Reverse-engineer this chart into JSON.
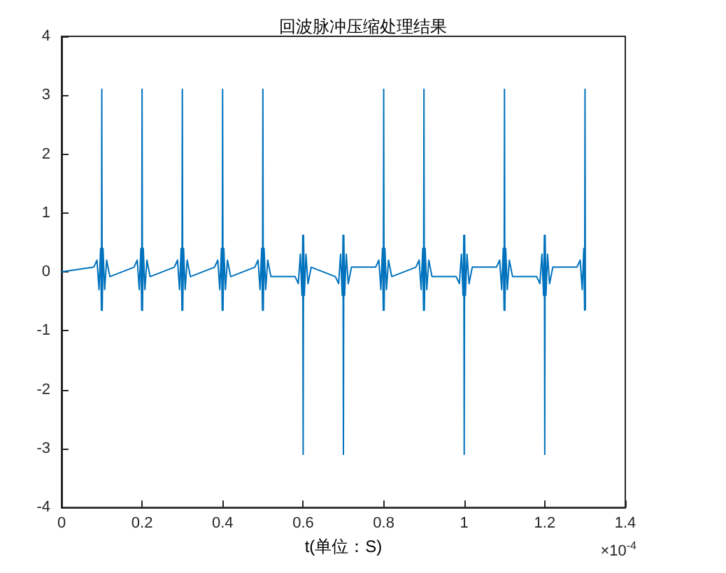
{
  "chart_data": {
    "type": "line",
    "title": "回波脉冲压缩处理结果",
    "xlabel": "t(单位：S)",
    "annotations": [
      "×10$^{-4}$"
    ],
    "xlim": [
      0,
      1.4
    ],
    "xticks": [
      0,
      0.2,
      0.4,
      0.6,
      0.8,
      1,
      1.2,
      1.4
    ],
    "ylim": [
      -4,
      4
    ],
    "yticks": [
      -4,
      -3,
      -2,
      -1,
      0,
      1,
      2,
      3,
      4
    ],
    "grid": false,
    "marker": "none",
    "line_style": "solid",
    "series": [
      {
        "color": "#0072bd",
        "x": [
          0,
          0.08,
          0.088,
          0.093,
          0.097,
          0.099,
          0.1,
          0.101,
          0.103,
          0.107,
          0.112,
          0.12,
          0.18,
          0.188,
          0.193,
          0.197,
          0.199,
          0.2,
          0.201,
          0.203,
          0.207,
          0.212,
          0.22,
          0.28,
          0.288,
          0.293,
          0.297,
          0.299,
          0.3,
          0.301,
          0.303,
          0.307,
          0.312,
          0.32,
          0.38,
          0.388,
          0.393,
          0.397,
          0.399,
          0.4,
          0.401,
          0.403,
          0.407,
          0.412,
          0.42,
          0.48,
          0.488,
          0.493,
          0.497,
          0.499,
          0.5,
          0.501,
          0.503,
          0.507,
          0.512,
          0.52,
          0.58,
          0.588,
          0.593,
          0.597,
          0.599,
          0.6,
          0.601,
          0.603,
          0.607,
          0.612,
          0.62,
          0.68,
          0.688,
          0.693,
          0.697,
          0.699,
          0.7,
          0.701,
          0.703,
          0.707,
          0.712,
          0.72,
          0.78,
          0.788,
          0.793,
          0.797,
          0.799,
          0.8,
          0.801,
          0.803,
          0.807,
          0.812,
          0.82,
          0.88,
          0.888,
          0.893,
          0.897,
          0.899,
          0.9,
          0.901,
          0.903,
          0.907,
          0.912,
          0.92,
          0.98,
          0.988,
          0.993,
          0.997,
          0.999,
          1,
          1.001,
          1.003,
          1.007,
          1.012,
          1.02,
          1.08,
          1.088,
          1.093,
          1.097,
          1.099,
          1.1,
          1.101,
          1.103,
          1.107,
          1.112,
          1.12,
          1.18,
          1.188,
          1.193,
          1.197,
          1.199,
          1.2,
          1.201,
          1.203,
          1.207,
          1.212,
          1.22,
          1.28,
          1.288,
          1.293,
          1.297,
          1.299,
          1.3,
          1.301
        ],
        "values": [
          0,
          0.08,
          0.2,
          -0.3,
          0.4,
          -0.65,
          3.1,
          -0.65,
          0.4,
          -0.3,
          0.2,
          -0.08,
          0.08,
          0.2,
          -0.3,
          0.4,
          -0.65,
          3.1,
          -0.65,
          0.4,
          -0.3,
          0.2,
          -0.08,
          0.08,
          0.2,
          -0.3,
          0.4,
          -0.65,
          3.1,
          -0.65,
          0.4,
          -0.3,
          0.2,
          -0.08,
          0.08,
          0.2,
          -0.3,
          0.4,
          -0.65,
          3.1,
          -0.65,
          0.4,
          -0.3,
          0.2,
          -0.08,
          0.08,
          0.2,
          -0.3,
          0.4,
          -0.65,
          3.1,
          -0.65,
          0.4,
          -0.3,
          0.2,
          -0.08,
          -0.08,
          -0.2,
          0.3,
          -0.4,
          0.62,
          -3.1,
          0.62,
          -0.4,
          0.3,
          -0.2,
          0.08,
          -0.08,
          -0.2,
          0.3,
          -0.4,
          0.62,
          -3.1,
          0.62,
          -0.4,
          0.3,
          -0.2,
          0.08,
          0.08,
          0.2,
          -0.3,
          0.4,
          -0.65,
          3.1,
          -0.65,
          0.4,
          -0.3,
          0.2,
          -0.08,
          0.08,
          0.2,
          -0.3,
          0.4,
          -0.65,
          3.1,
          -0.65,
          0.4,
          -0.3,
          0.2,
          -0.08,
          -0.08,
          -0.2,
          0.3,
          -0.4,
          0.62,
          -3.1,
          0.62,
          -0.4,
          0.3,
          -0.2,
          0.08,
          0.08,
          0.2,
          -0.3,
          0.4,
          -0.65,
          3.1,
          -0.65,
          0.4,
          -0.3,
          0.2,
          -0.08,
          -0.08,
          -0.2,
          0.3,
          -0.4,
          0.62,
          -3.1,
          0.62,
          -0.4,
          0.3,
          -0.2,
          0.08,
          0.08,
          0.2,
          -0.3,
          0.4,
          -0.65,
          3.1,
          -0.65
        ]
      }
    ]
  }
}
